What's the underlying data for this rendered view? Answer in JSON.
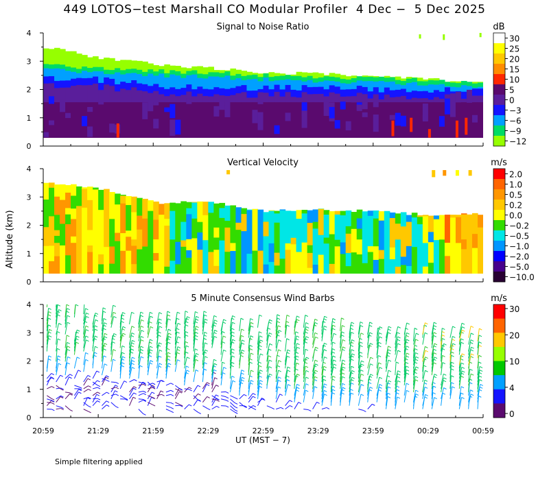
{
  "title": "449 LOTOS−test Marshall CO Modular Profiler  4 Dec −  5 Dec 2025",
  "y_axis_label": "Altitude (km)",
  "x_axis_label": "UT  (MST − 7)",
  "footer_note": "Simple filtering applied",
  "time_ticks": [
    "20:59",
    "21:29",
    "21:59",
    "22:29",
    "22:59",
    "23:29",
    "23:59",
    "00:29",
    "00:59"
  ],
  "chart_data": [
    {
      "type": "heatmap",
      "title": "Signal to Noise Ratio",
      "unit": "dB",
      "ylim": [
        0,
        4
      ],
      "yticks": [
        "0",
        "1",
        "2",
        "3",
        "4"
      ],
      "x_range": [
        "20:59",
        "00:59"
      ],
      "colorbar": {
        "labels": [
          "30",
          "25",
          "20",
          "15",
          "10",
          "5",
          "0",
          "−3",
          "−6",
          "−9",
          "−12"
        ],
        "colors": [
          "#ffffff",
          "#ffff00",
          "#ffc800",
          "#ff8c00",
          "#ff2800",
          "#5a0a6e",
          "#5a1e9b",
          "#1414ff",
          "#00a0ff",
          "#00dc64",
          "#96ff00"
        ]
      },
      "profile": {
        "time": [
          "20:59",
          "21:29",
          "21:59",
          "22:29",
          "22:59",
          "23:29",
          "23:59",
          "00:29",
          "00:59"
        ],
        "top_km": [
          3.5,
          3.1,
          2.9,
          2.75,
          2.6,
          2.55,
          2.45,
          2.35,
          2.25
        ],
        "snr_green_to_cyan_km": [
          2.7,
          2.6,
          2.5,
          2.45,
          2.35,
          2.3,
          2.25,
          2.2,
          2.1
        ],
        "snr_blue_to_purple_km": [
          2.1,
          2.1,
          1.9,
          1.85,
          1.8,
          1.8,
          1.75,
          1.75,
          1.7
        ]
      },
      "grid": false
    },
    {
      "type": "heatmap",
      "title": "Vertical Velocity",
      "unit": "m/s",
      "ylim": [
        0,
        4
      ],
      "yticks": [
        "0",
        "1",
        "2",
        "3",
        "4"
      ],
      "x_range": [
        "20:59",
        "00:59"
      ],
      "colorbar": {
        "labels": [
          "2.0",
          "1.0",
          "0.5",
          "0.2",
          "0.0",
          "−0.2",
          "−0.5",
          "−1.0",
          "−2.0",
          "−5.0",
          "−10.0"
        ],
        "colors": [
          "#ff0000",
          "#ff6400",
          "#ff9600",
          "#ffc800",
          "#ffff00",
          "#32dc00",
          "#00e6e6",
          "#0096ff",
          "#0000ff",
          "#46008c",
          "#280032"
        ]
      },
      "profile": {
        "time": [
          "20:59",
          "21:29",
          "21:59",
          "22:29",
          "22:59",
          "23:29",
          "23:59",
          "00:29",
          "00:59"
        ],
        "top_km": [
          3.5,
          3.3,
          2.8,
          2.8,
          2.5,
          2.55,
          2.5,
          2.35,
          2.4
        ]
      },
      "grid": false
    },
    {
      "type": "scatter",
      "title": "5 Minute Consensus Wind Barbs",
      "unit": "m/s",
      "ylim": [
        0,
        4
      ],
      "yticks": [
        "0",
        "1",
        "2",
        "3",
        "4"
      ],
      "x_range": [
        "20:59",
        "00:59"
      ],
      "colorbar": {
        "labels": [
          "30",
          "20",
          "10",
          "4",
          "0"
        ],
        "colors": [
          "#ff0000",
          "#ff6400",
          "#ffc800",
          "#96ff00",
          "#00c800",
          "#00a0ff",
          "#1414ff",
          "#5a0a6e"
        ]
      },
      "profile": {
        "time": [
          "20:59",
          "21:29",
          "21:59",
          "22:29",
          "22:59",
          "23:29",
          "23:59",
          "00:29",
          "00:59"
        ],
        "top_km": [
          4.0,
          3.6,
          3.4,
          3.3,
          3.2,
          3.2,
          3.0,
          3.0,
          2.9
        ],
        "slow_layer_top_km": [
          1.5,
          1.4,
          1.3,
          1.0,
          0.6,
          0.4,
          0.3,
          0.3,
          0.3
        ]
      },
      "grid": false
    }
  ]
}
